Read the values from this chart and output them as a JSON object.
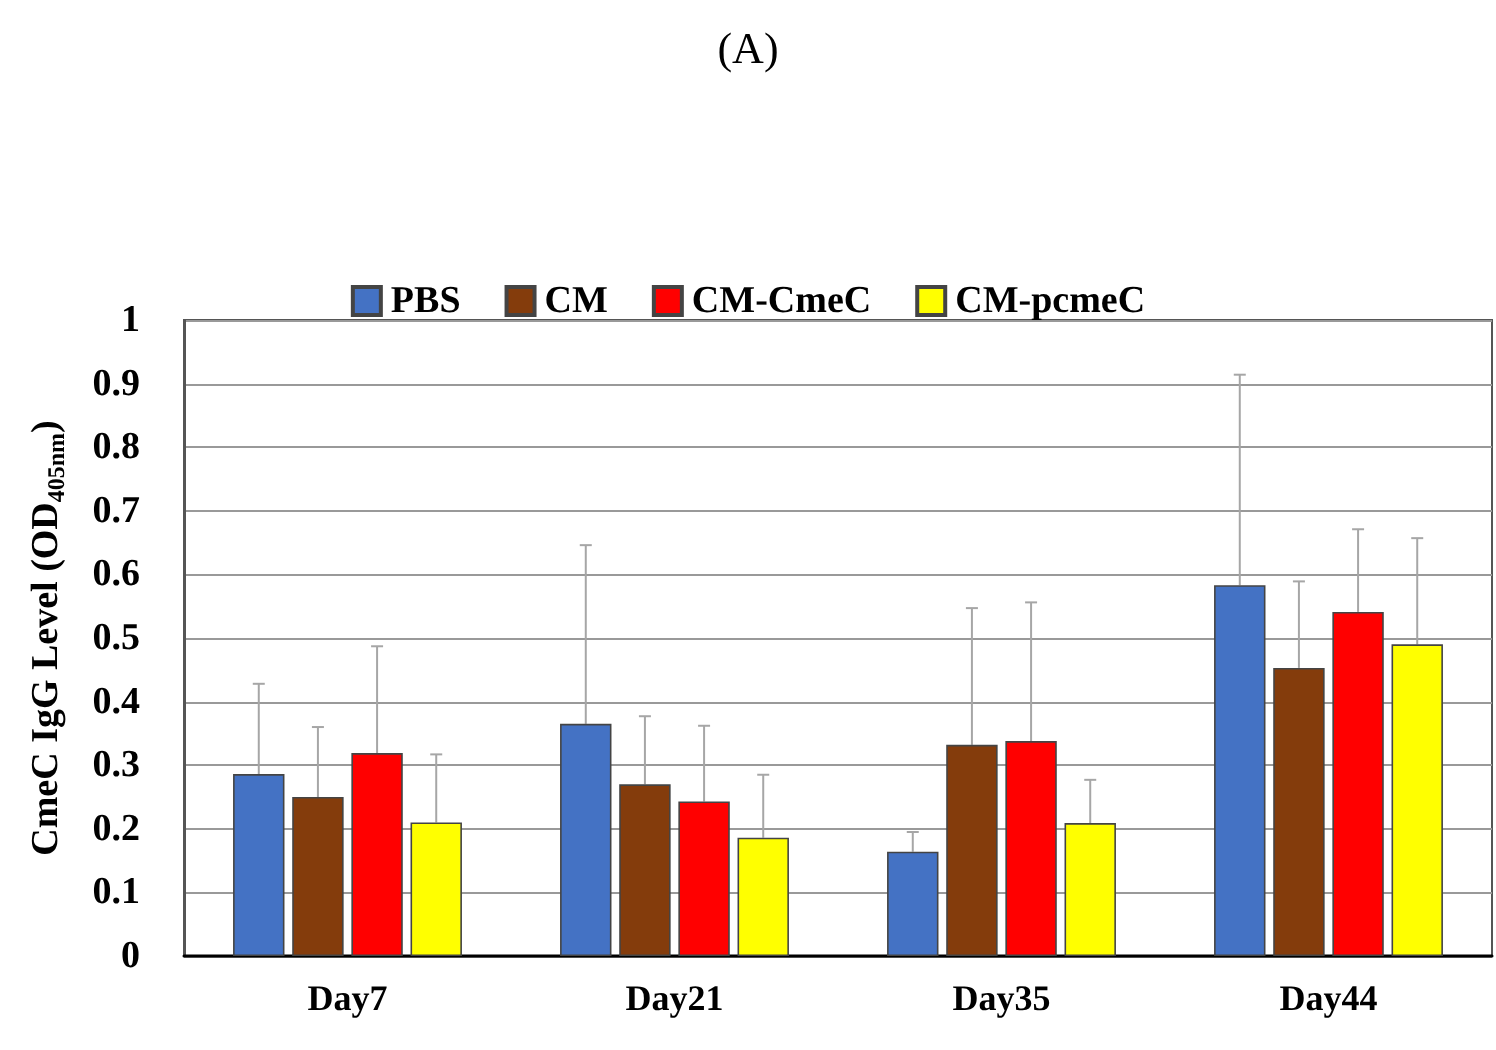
{
  "chart_data": {
    "type": "bar",
    "title": "(A)",
    "ylabel": "CmeC IgG Level (OD$_{405nm}$)",
    "categories": [
      "Day7",
      "Day21",
      "Day35",
      "Day44"
    ],
    "series": [
      {
        "name": "PBS",
        "color": "#4472c4",
        "values": [
          0.286,
          0.365,
          0.164,
          0.583
        ],
        "errors": [
          [
            0.286,
            0.428
          ],
          [
            0.365,
            0.646
          ],
          [
            0.164,
            0.195
          ],
          [
            0.583,
            0.914
          ]
        ]
      },
      {
        "name": "CM",
        "color": "#843c0c",
        "values": [
          0.25,
          0.27,
          0.332,
          0.453
        ],
        "errors": [
          [
            0.25,
            0.36
          ],
          [
            0.27,
            0.377
          ],
          [
            0.332,
            0.547
          ],
          [
            0.453,
            0.589
          ]
        ]
      },
      {
        "name": "CM-CmeC",
        "color": "#ff0000",
        "values": [
          0.319,
          0.243,
          0.338,
          0.541
        ],
        "errors": [
          [
            0.319,
            0.487
          ],
          [
            0.243,
            0.362
          ],
          [
            0.338,
            0.556
          ],
          [
            0.541,
            0.671
          ]
        ]
      },
      {
        "name": "CM-pcmeC",
        "color": "#ffff00",
        "values": [
          0.21,
          0.186,
          0.209,
          0.49
        ],
        "errors": [
          [
            0.21,
            0.317
          ],
          [
            0.186,
            0.285
          ],
          [
            0.209,
            0.277
          ],
          [
            0.49,
            0.657
          ]
        ]
      }
    ],
    "ylim": [
      0,
      1
    ],
    "yticks": [
      0,
      0.1,
      0.2,
      0.3,
      0.4,
      0.5,
      0.6,
      0.7,
      0.8,
      0.9,
      1
    ],
    "grid": "y",
    "legend": "top"
  }
}
